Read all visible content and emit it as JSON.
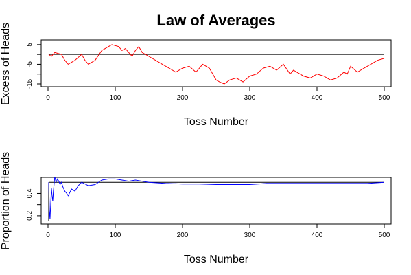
{
  "title": "Law of Averages",
  "chart_data": [
    {
      "type": "line",
      "xlabel": "Toss Number",
      "ylabel": "Excess of Heads",
      "xlim": [
        0,
        500
      ],
      "ylim": [
        -15,
        6
      ],
      "xticks": [
        0,
        100,
        200,
        300,
        400,
        500
      ],
      "yticks": [
        -15,
        -10,
        -5,
        0,
        5
      ],
      "ytick_labels": [
        "-15",
        "",
        "-5",
        "",
        "5"
      ],
      "reference_line": 0,
      "reference_color": "#000000",
      "series": [
        {
          "color": "#ff0000",
          "x": [
            1,
            5,
            10,
            20,
            25,
            30,
            40,
            50,
            55,
            60,
            70,
            80,
            90,
            95,
            105,
            110,
            115,
            120,
            125,
            130,
            135,
            140,
            150,
            160,
            170,
            180,
            190,
            200,
            210,
            220,
            230,
            240,
            250,
            255,
            262,
            270,
            280,
            290,
            300,
            310,
            320,
            330,
            340,
            350,
            360,
            365,
            370,
            380,
            390,
            400,
            410,
            420,
            430,
            440,
            445,
            450,
            460,
            470,
            480,
            490,
            500
          ],
          "y": [
            0,
            -1,
            1,
            0,
            -3,
            -5,
            -3,
            0,
            -3,
            -5,
            -3,
            2,
            4,
            5,
            4,
            2,
            3,
            1,
            -1,
            2,
            4,
            1,
            -1,
            -3,
            -5,
            -7,
            -9,
            -7,
            -6,
            -9,
            -5,
            -7,
            -13,
            -14,
            -15,
            -13,
            -12,
            -14,
            -11,
            -10,
            -7,
            -6,
            -8,
            -5,
            -10,
            -8,
            -9,
            -11,
            -12,
            -10,
            -11,
            -13,
            -12,
            -9,
            -10,
            -6,
            -9,
            -7,
            -5,
            -3,
            -2
          ]
        }
      ]
    },
    {
      "type": "line",
      "xlabel": "Toss Number",
      "ylabel": "Proportion of Heads",
      "xlim": [
        0,
        500
      ],
      "ylim": [
        0.15,
        0.52
      ],
      "xticks": [
        0,
        100,
        200,
        300,
        400,
        500
      ],
      "yticks": [
        0.2,
        0.3,
        0.4
      ],
      "ytick_labels": [
        "0.2",
        "",
        "0.4"
      ],
      "reference_line": 0.5,
      "reference_color": "#000000",
      "series": [
        {
          "color": "#0000ff",
          "x": [
            1,
            2,
            3,
            4,
            5,
            6,
            7,
            8,
            9,
            10,
            12,
            14,
            16,
            18,
            20,
            22,
            25,
            28,
            30,
            35,
            40,
            45,
            50,
            60,
            70,
            80,
            90,
            100,
            110,
            120,
            130,
            140,
            150,
            175,
            200,
            225,
            250,
            275,
            300,
            325,
            350,
            375,
            400,
            425,
            450,
            475,
            500
          ],
          "y": [
            0.5,
            0.25,
            0.17,
            0.3,
            0.45,
            0.38,
            0.33,
            0.42,
            0.48,
            0.55,
            0.5,
            0.53,
            0.51,
            0.48,
            0.5,
            0.46,
            0.42,
            0.4,
            0.38,
            0.44,
            0.42,
            0.47,
            0.5,
            0.47,
            0.48,
            0.52,
            0.53,
            0.53,
            0.52,
            0.51,
            0.52,
            0.51,
            0.5,
            0.49,
            0.485,
            0.485,
            0.48,
            0.48,
            0.48,
            0.49,
            0.49,
            0.49,
            0.49,
            0.49,
            0.49,
            0.49,
            0.5
          ]
        }
      ]
    }
  ]
}
